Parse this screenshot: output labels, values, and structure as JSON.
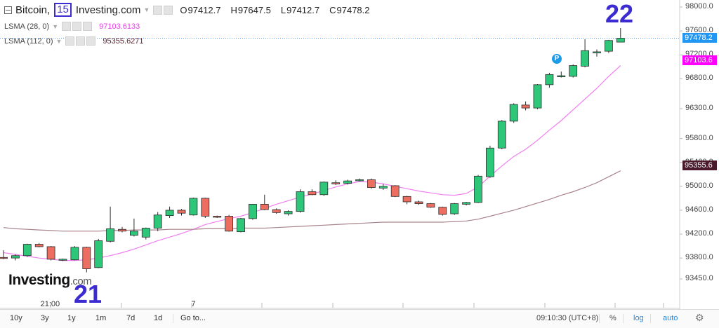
{
  "header": {
    "symbol": "Bitcoin,",
    "resolution": "15",
    "source": "Investing.com",
    "ohlc": [
      {
        "letter": "O",
        "value": "97412.7"
      },
      {
        "letter": "H",
        "value": "97647.5"
      },
      {
        "letter": "L",
        "value": "97412.7"
      },
      {
        "letter": "C",
        "value": "97478.2"
      }
    ]
  },
  "indicators": [
    {
      "name": "LSMA (28, 0)",
      "value": "97103.6133",
      "color": "#e93ee9"
    },
    {
      "name": "LSMA (112, 0)",
      "value": "95355.6271",
      "color": "#5c1f2e"
    }
  ],
  "annotations": {
    "left_number": "21",
    "right_number": "22",
    "marker": "P"
  },
  "logo": {
    "main": "Investing",
    "suffix": ".com"
  },
  "price_tags": [
    {
      "text": "97478.2",
      "price": 97478.2,
      "color": "#2196f3"
    },
    {
      "text": "97103.6",
      "price": 97103.6,
      "color": "#ff00ff"
    },
    {
      "text": "95355.6",
      "price": 95355.6,
      "color": "#4a1a2c"
    }
  ],
  "bottom_bar": {
    "timeframes": [
      "10y",
      "3y",
      "1y",
      "1m",
      "7d",
      "1d"
    ],
    "goto": "Go to...",
    "clock": "09:10:30 (UTC+8)",
    "percent": "%",
    "log": "log",
    "auto": "auto"
  },
  "chart_data": {
    "type": "candlestick",
    "title": "Bitcoin, 15, Investing.com",
    "ylim": [
      93150,
      98100
    ],
    "y_ticks": [
      93450,
      93800,
      94200,
      94600,
      95000,
      95400,
      95800,
      96300,
      96800,
      97200,
      97600,
      98000
    ],
    "y_tick_labels": [
      "93450.0",
      "93800.0",
      "94200.0",
      "94600.0",
      "95000.0",
      "95400.0",
      "95800.0",
      "96300.0",
      "96800.0",
      "97200.0",
      "97600.0",
      "98000.0"
    ],
    "x_labels": [
      {
        "label": "21:00",
        "index": 4
      },
      {
        "label": "7",
        "index": 16
      }
    ],
    "candles": [
      {
        "o": 93810,
        "h": 93930,
        "l": 93780,
        "c": 93800
      },
      {
        "o": 93800,
        "h": 93860,
        "l": 93760,
        "c": 93840
      },
      {
        "o": 93840,
        "h": 94040,
        "l": 93820,
        "c": 94030
      },
      {
        "o": 94030,
        "h": 94050,
        "l": 93980,
        "c": 93990
      },
      {
        "o": 93990,
        "h": 94000,
        "l": 93760,
        "c": 93780
      },
      {
        "o": 93770,
        "h": 93790,
        "l": 93750,
        "c": 93780
      },
      {
        "o": 93770,
        "h": 94000,
        "l": 93760,
        "c": 93980
      },
      {
        "o": 93980,
        "h": 93990,
        "l": 93560,
        "c": 93620
      },
      {
        "o": 93640,
        "h": 94120,
        "l": 93630,
        "c": 94090
      },
      {
        "o": 94080,
        "h": 94660,
        "l": 94060,
        "c": 94290
      },
      {
        "o": 94280,
        "h": 94320,
        "l": 94230,
        "c": 94250
      },
      {
        "o": 94180,
        "h": 94460,
        "l": 94160,
        "c": 94250
      },
      {
        "o": 94150,
        "h": 94310,
        "l": 94110,
        "c": 94300
      },
      {
        "o": 94300,
        "h": 94570,
        "l": 94250,
        "c": 94520
      },
      {
        "o": 94510,
        "h": 94660,
        "l": 94470,
        "c": 94600
      },
      {
        "o": 94600,
        "h": 94620,
        "l": 94510,
        "c": 94550
      },
      {
        "o": 94520,
        "h": 94810,
        "l": 94510,
        "c": 94800
      },
      {
        "o": 94800,
        "h": 94810,
        "l": 94470,
        "c": 94500
      },
      {
        "o": 94500,
        "h": 94510,
        "l": 94470,
        "c": 94490
      },
      {
        "o": 94500,
        "h": 94520,
        "l": 94240,
        "c": 94250
      },
      {
        "o": 94240,
        "h": 94470,
        "l": 94230,
        "c": 94460
      },
      {
        "o": 94460,
        "h": 94700,
        "l": 94440,
        "c": 94700
      },
      {
        "o": 94700,
        "h": 94860,
        "l": 94600,
        "c": 94610
      },
      {
        "o": 94610,
        "h": 94630,
        "l": 94540,
        "c": 94560
      },
      {
        "o": 94540,
        "h": 94600,
        "l": 94510,
        "c": 94580
      },
      {
        "o": 94580,
        "h": 94950,
        "l": 94560,
        "c": 94910
      },
      {
        "o": 94910,
        "h": 94950,
        "l": 94850,
        "c": 94860
      },
      {
        "o": 94860,
        "h": 95080,
        "l": 94840,
        "c": 95070
      },
      {
        "o": 95060,
        "h": 95100,
        "l": 95020,
        "c": 95040
      },
      {
        "o": 95050,
        "h": 95110,
        "l": 95030,
        "c": 95090
      },
      {
        "o": 95100,
        "h": 95130,
        "l": 95080,
        "c": 95110
      },
      {
        "o": 95110,
        "h": 95130,
        "l": 94960,
        "c": 94980
      },
      {
        "o": 94970,
        "h": 95040,
        "l": 94940,
        "c": 95000
      },
      {
        "o": 95010,
        "h": 95020,
        "l": 94820,
        "c": 94830
      },
      {
        "o": 94830,
        "h": 94840,
        "l": 94700,
        "c": 94740
      },
      {
        "o": 94740,
        "h": 94760,
        "l": 94690,
        "c": 94710
      },
      {
        "o": 94710,
        "h": 94720,
        "l": 94640,
        "c": 94650
      },
      {
        "o": 94650,
        "h": 94660,
        "l": 94510,
        "c": 94530
      },
      {
        "o": 94540,
        "h": 94720,
        "l": 94520,
        "c": 94710
      },
      {
        "o": 94700,
        "h": 94740,
        "l": 94680,
        "c": 94730
      },
      {
        "o": 94730,
        "h": 95190,
        "l": 94720,
        "c": 95170
      },
      {
        "o": 95160,
        "h": 95680,
        "l": 95140,
        "c": 95640
      },
      {
        "o": 95640,
        "h": 96110,
        "l": 95620,
        "c": 96090
      },
      {
        "o": 96090,
        "h": 96390,
        "l": 96060,
        "c": 96370
      },
      {
        "o": 96360,
        "h": 96420,
        "l": 96270,
        "c": 96310
      },
      {
        "o": 96310,
        "h": 96710,
        "l": 96290,
        "c": 96700
      },
      {
        "o": 96700,
        "h": 96900,
        "l": 96650,
        "c": 96870
      },
      {
        "o": 96840,
        "h": 96920,
        "l": 96820,
        "c": 96850
      },
      {
        "o": 96840,
        "h": 97040,
        "l": 96820,
        "c": 97020
      },
      {
        "o": 97010,
        "h": 97460,
        "l": 96990,
        "c": 97270
      },
      {
        "o": 97240,
        "h": 97290,
        "l": 97170,
        "c": 97250
      },
      {
        "o": 97260,
        "h": 97450,
        "l": 97230,
        "c": 97440
      },
      {
        "o": 97412.7,
        "h": 97647.5,
        "l": 97412.7,
        "c": 97478.2
      }
    ],
    "series": [
      {
        "name": "LSMA (28, 0)",
        "color": "#f07ef0",
        "values": [
          93890,
          93860,
          93830,
          93800,
          93780,
          93760,
          93760,
          93770,
          93800,
          93840,
          93890,
          93950,
          94020,
          94090,
          94150,
          94210,
          94280,
          94360,
          94410,
          94460,
          94500,
          94560,
          94630,
          94700,
          94760,
          94820,
          94870,
          94930,
          94990,
          95040,
          95080,
          95070,
          95040,
          95000,
          94960,
          94920,
          94890,
          94860,
          94850,
          94880,
          94990,
          95170,
          95340,
          95500,
          95620,
          95770,
          95940,
          96100,
          96280,
          96460,
          96640,
          96840,
          97020
        ]
      },
      {
        "name": "LSMA (112, 0)",
        "color": "#a8838b",
        "values": [
          94310,
          94290,
          94280,
          94270,
          94260,
          94250,
          94250,
          94250,
          94250,
          94260,
          94260,
          94270,
          94270,
          94270,
          94280,
          94280,
          94280,
          94290,
          94290,
          94290,
          94300,
          94300,
          94300,
          94310,
          94320,
          94330,
          94340,
          94350,
          94360,
          94370,
          94380,
          94390,
          94400,
          94400,
          94400,
          94400,
          94400,
          94400,
          94410,
          94420,
          94450,
          94500,
          94550,
          94600,
          94660,
          94720,
          94780,
          94850,
          94910,
          94980,
          95060,
          95160,
          95260
        ]
      }
    ]
  }
}
